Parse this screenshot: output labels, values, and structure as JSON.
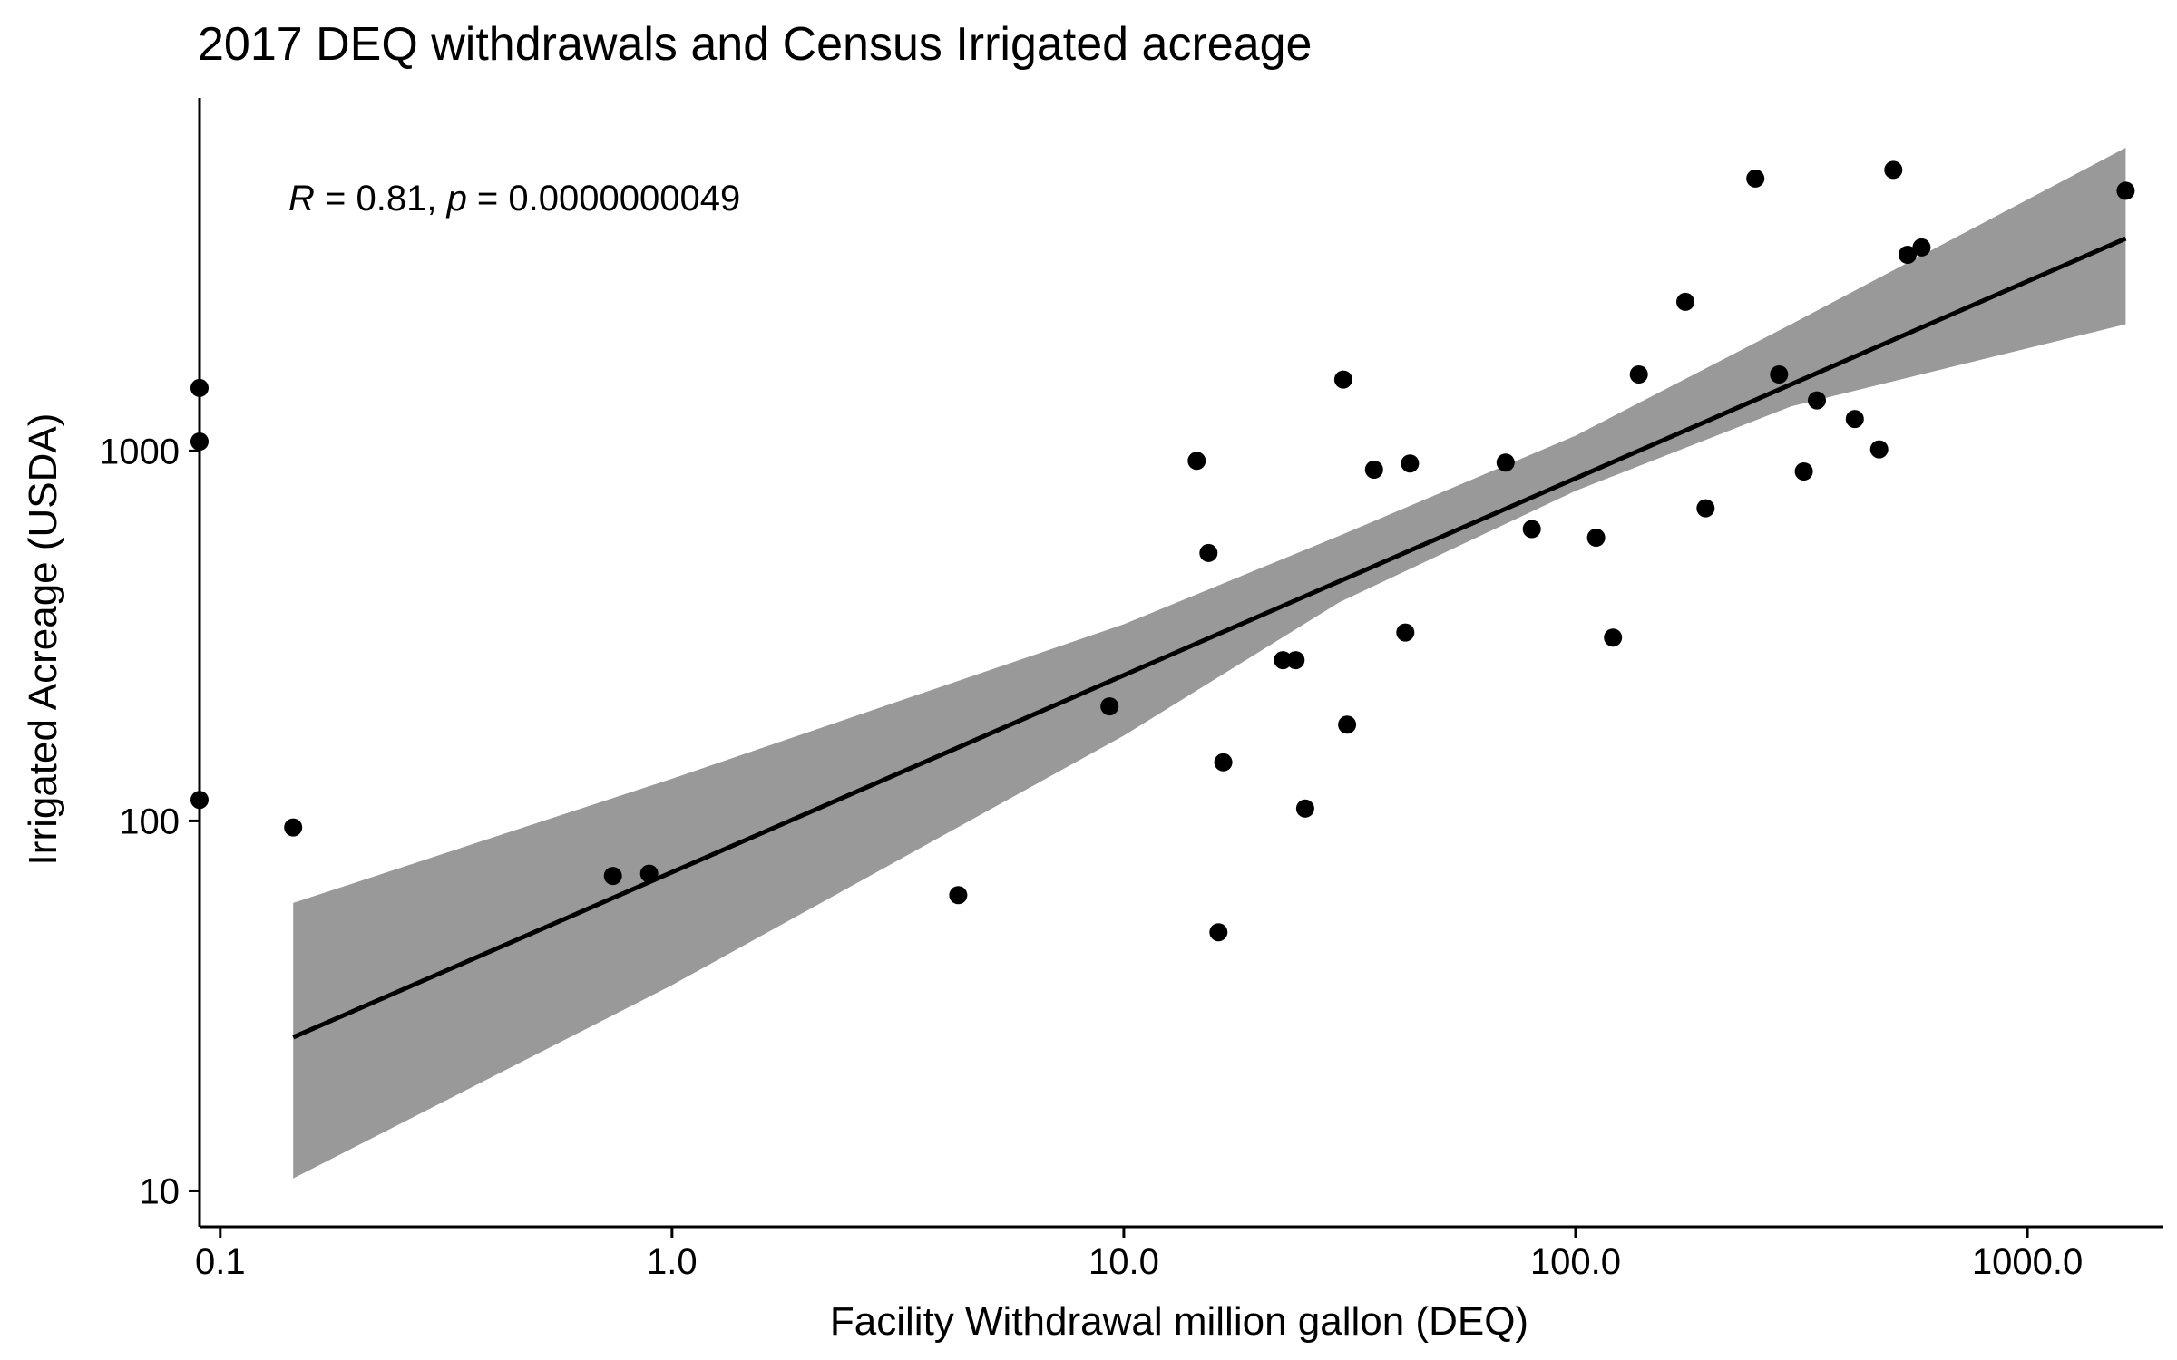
{
  "chart_data": {
    "type": "scatter",
    "title": "2017 DEQ withdrawals and Census Irrigated acreage",
    "xlabel": "Facility Withdrawal million gallon (DEQ)",
    "ylabel": "Irrigated Acreage (USDA)",
    "x_scale": "log10",
    "y_scale": "log10",
    "xlim": [
      0.09,
      2000
    ],
    "ylim": [
      8,
      9000
    ],
    "x_ticks": [
      {
        "value": 0.1,
        "label": "0.1"
      },
      {
        "value": 1,
        "label": "1.0"
      },
      {
        "value": 10,
        "label": "10.0"
      },
      {
        "value": 100,
        "label": "100.0"
      },
      {
        "value": 1000,
        "label": "1000.0"
      }
    ],
    "y_ticks": [
      {
        "value": 10,
        "label": "10"
      },
      {
        "value": 100,
        "label": "100"
      },
      {
        "value": 1000,
        "label": "1000"
      }
    ],
    "grid": false,
    "annotation": {
      "r_label": "R",
      "r_text": " = 0.81, ",
      "p_label": "p",
      "p_text": " = 0.0000000049"
    },
    "points": [
      {
        "x": 0.09,
        "y": 1480
      },
      {
        "x": 0.09,
        "y": 1060
      },
      {
        "x": 0.09,
        "y": 114
      },
      {
        "x": 0.145,
        "y": 96
      },
      {
        "x": 0.74,
        "y": 71
      },
      {
        "x": 0.89,
        "y": 72
      },
      {
        "x": 4.3,
        "y": 63
      },
      {
        "x": 9.3,
        "y": 204
      },
      {
        "x": 14.5,
        "y": 940
      },
      {
        "x": 15.4,
        "y": 530
      },
      {
        "x": 16.2,
        "y": 50
      },
      {
        "x": 16.6,
        "y": 144
      },
      {
        "x": 22.5,
        "y": 272
      },
      {
        "x": 24.0,
        "y": 272
      },
      {
        "x": 25.2,
        "y": 108
      },
      {
        "x": 30.6,
        "y": 1560
      },
      {
        "x": 31.2,
        "y": 182
      },
      {
        "x": 35.8,
        "y": 890
      },
      {
        "x": 42.0,
        "y": 323
      },
      {
        "x": 43.0,
        "y": 925
      },
      {
        "x": 70.0,
        "y": 930
      },
      {
        "x": 80.0,
        "y": 615
      },
      {
        "x": 111.0,
        "y": 583
      },
      {
        "x": 121.0,
        "y": 313
      },
      {
        "x": 138.0,
        "y": 1610
      },
      {
        "x": 175.0,
        "y": 2530
      },
      {
        "x": 194.0,
        "y": 700
      },
      {
        "x": 250.0,
        "y": 5450
      },
      {
        "x": 282.0,
        "y": 1610
      },
      {
        "x": 320.0,
        "y": 880
      },
      {
        "x": 342.0,
        "y": 1370
      },
      {
        "x": 415.0,
        "y": 1220
      },
      {
        "x": 470.0,
        "y": 1010
      },
      {
        "x": 505.0,
        "y": 5750
      },
      {
        "x": 543.0,
        "y": 3390
      },
      {
        "x": 583.0,
        "y": 3550
      },
      {
        "x": 1650.0,
        "y": 5050
      }
    ],
    "fit": {
      "type": "linear (log-log)",
      "x": [
        0.145,
        1650
      ],
      "y": [
        26,
        3750
      ],
      "ci_band": [
        {
          "x": 0.145,
          "lower": 10.8,
          "upper": 60
        },
        {
          "x": 1,
          "lower": 36,
          "upper": 130
        },
        {
          "x": 10,
          "lower": 170,
          "upper": 340
        },
        {
          "x": 30,
          "lower": 390,
          "upper": 590
        },
        {
          "x": 100,
          "lower": 780,
          "upper": 1100
        },
        {
          "x": 300,
          "lower": 1320,
          "upper": 2200
        },
        {
          "x": 1650,
          "lower": 2200,
          "upper": 6600
        }
      ]
    },
    "colors": {
      "points": "#000000",
      "fit_line": "#000000",
      "band": "#999999"
    }
  }
}
